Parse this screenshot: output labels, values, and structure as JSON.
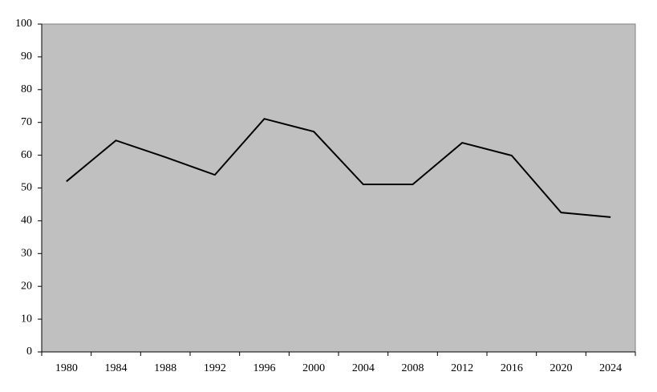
{
  "chart_data": {
    "type": "line",
    "categories": [
      "1980",
      "1984",
      "1988",
      "1992",
      "1996",
      "2000",
      "2004",
      "2008",
      "2012",
      "2016",
      "2020",
      "2024"
    ],
    "series": [
      {
        "color": "#000000",
        "values": [
          52,
          64.5,
          59.4,
          54,
          71.1,
          67.2,
          51.1,
          51.1,
          63.8,
          59.9,
          42.5,
          41.1
        ]
      }
    ],
    "ylim": [
      0,
      100
    ],
    "yticks": [
      0,
      10,
      20,
      30,
      40,
      50,
      60,
      70,
      80,
      90,
      100
    ],
    "plot_background": "#c0c0c0"
  }
}
